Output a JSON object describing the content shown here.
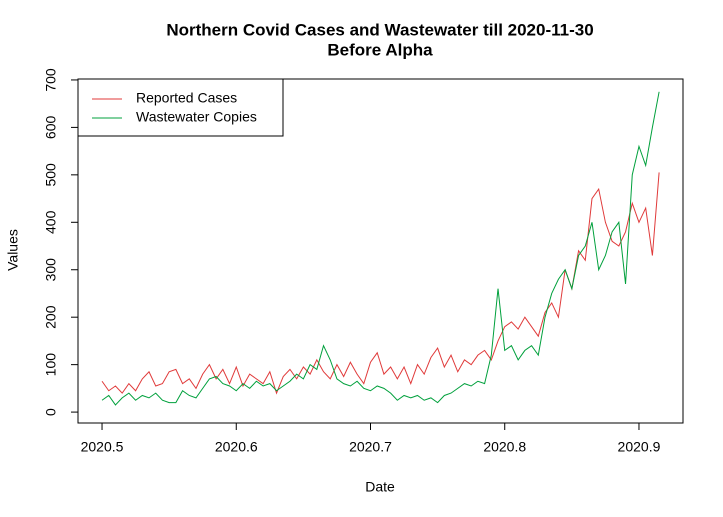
{
  "chart_data": {
    "type": "line",
    "title": "Northern Covid Cases and Wastewater till 2020-11-30",
    "subtitle": "Before Alpha",
    "xlabel": "Date",
    "ylabel": "Values",
    "x": [
      2020.5,
      2020.505,
      2020.51,
      2020.515,
      2020.52,
      2020.525,
      2020.53,
      2020.535,
      2020.54,
      2020.545,
      2020.55,
      2020.555,
      2020.56,
      2020.565,
      2020.57,
      2020.575,
      2020.58,
      2020.585,
      2020.59,
      2020.595,
      2020.6,
      2020.605,
      2020.61,
      2020.615,
      2020.62,
      2020.625,
      2020.63,
      2020.635,
      2020.64,
      2020.645,
      2020.65,
      2020.655,
      2020.66,
      2020.665,
      2020.67,
      2020.675,
      2020.68,
      2020.685,
      2020.69,
      2020.695,
      2020.7,
      2020.705,
      2020.71,
      2020.715,
      2020.72,
      2020.725,
      2020.73,
      2020.735,
      2020.74,
      2020.745,
      2020.75,
      2020.755,
      2020.76,
      2020.765,
      2020.77,
      2020.775,
      2020.78,
      2020.785,
      2020.79,
      2020.795,
      2020.8,
      2020.805,
      2020.81,
      2020.815,
      2020.82,
      2020.825,
      2020.83,
      2020.835,
      2020.84,
      2020.845,
      2020.85,
      2020.855,
      2020.86,
      2020.865,
      2020.87,
      2020.875,
      2020.88,
      2020.885,
      2020.89,
      2020.895,
      2020.9,
      2020.905,
      2020.91,
      2020.915
    ],
    "series": [
      {
        "name": "Reported Cases",
        "color": "#e03a3a",
        "values": [
          65,
          45,
          55,
          40,
          60,
          45,
          70,
          85,
          55,
          60,
          85,
          90,
          60,
          70,
          50,
          80,
          100,
          70,
          90,
          60,
          95,
          55,
          80,
          70,
          60,
          85,
          40,
          75,
          90,
          70,
          95,
          80,
          110,
          85,
          70,
          100,
          75,
          105,
          80,
          60,
          105,
          125,
          80,
          95,
          70,
          95,
          60,
          100,
          80,
          115,
          135,
          95,
          120,
          85,
          110,
          100,
          120,
          130,
          110,
          150,
          180,
          190,
          175,
          200,
          180,
          160,
          210,
          230,
          200,
          300,
          260,
          340,
          320,
          450,
          470,
          400,
          360,
          350,
          380,
          440,
          400,
          430,
          330,
          505
        ]
      },
      {
        "name": "Wastewater Copies",
        "color": "#00a03c",
        "values": [
          25,
          35,
          15,
          30,
          40,
          25,
          35,
          30,
          40,
          25,
          20,
          20,
          45,
          35,
          30,
          50,
          70,
          75,
          60,
          55,
          45,
          60,
          50,
          65,
          55,
          60,
          45,
          55,
          65,
          80,
          70,
          100,
          90,
          140,
          110,
          70,
          60,
          55,
          65,
          50,
          45,
          55,
          50,
          40,
          25,
          35,
          30,
          35,
          25,
          30,
          20,
          35,
          40,
          50,
          60,
          55,
          65,
          60,
          120,
          260,
          130,
          140,
          110,
          130,
          140,
          120,
          200,
          250,
          280,
          300,
          260,
          330,
          350,
          400,
          300,
          330,
          380,
          400,
          270,
          500,
          560,
          520,
          600,
          675
        ]
      }
    ],
    "xlim": [
      2020.4821,
      2020.9328
    ],
    "ylim": [
      -23,
      702
    ],
    "xticks": [
      2020.5,
      2020.6,
      2020.7,
      2020.8,
      2020.9
    ],
    "yticks": [
      0,
      100,
      200,
      300,
      400,
      500,
      600,
      700
    ],
    "legend": "top-left"
  }
}
